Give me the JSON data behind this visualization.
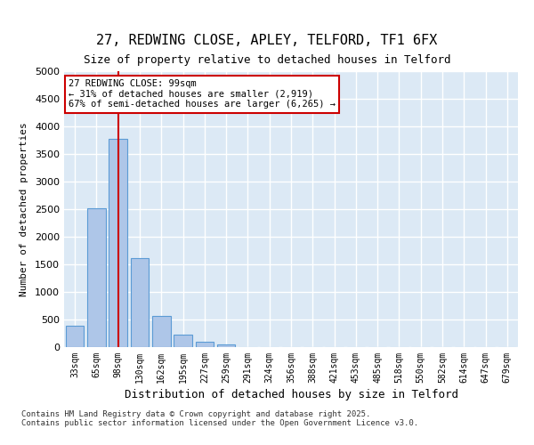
{
  "title_line1": "27, REDWING CLOSE, APLEY, TELFORD, TF1 6FX",
  "title_line2": "Size of property relative to detached houses in Telford",
  "xlabel": "Distribution of detached houses by size in Telford",
  "ylabel": "Number of detached properties",
  "categories": [
    "33sqm",
    "65sqm",
    "98sqm",
    "130sqm",
    "162sqm",
    "195sqm",
    "227sqm",
    "259sqm",
    "291sqm",
    "324sqm",
    "356sqm",
    "388sqm",
    "421sqm",
    "453sqm",
    "485sqm",
    "518sqm",
    "550sqm",
    "582sqm",
    "614sqm",
    "647sqm",
    "679sqm"
  ],
  "values": [
    380,
    2520,
    3780,
    1620,
    560,
    225,
    100,
    50,
    0,
    0,
    0,
    0,
    0,
    0,
    0,
    0,
    0,
    0,
    0,
    0,
    0
  ],
  "bar_color": "#aec6e8",
  "bar_edge_color": "#5b9bd5",
  "background_color": "#dce9f5",
  "grid_color": "#ffffff",
  "vline_x": 2,
  "vline_color": "#cc0000",
  "annotation_box_text": "27 REDWING CLOSE: 99sqm\n← 31% of detached houses are smaller (2,919)\n67% of semi-detached houses are larger (6,265) →",
  "annotation_box_color": "#cc0000",
  "footer_text": "Contains HM Land Registry data © Crown copyright and database right 2025.\nContains public sector information licensed under the Open Government Licence v3.0.",
  "ylim": [
    0,
    5000
  ],
  "yticks": [
    0,
    500,
    1000,
    1500,
    2000,
    2500,
    3000,
    3500,
    4000,
    4500,
    5000
  ]
}
